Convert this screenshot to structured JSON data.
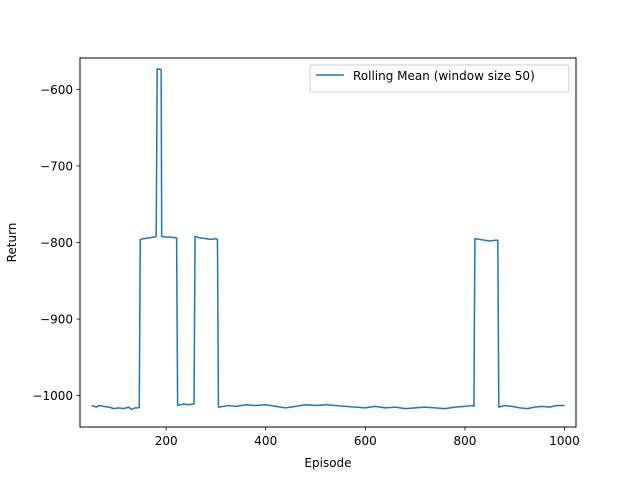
{
  "chart_data": {
    "type": "line",
    "title": "",
    "xlabel": "Episode",
    "ylabel": "Return",
    "xlim": [
      27,
      1023
    ],
    "ylim": [
      -1041,
      -559
    ],
    "xticks": [
      200,
      400,
      600,
      800,
      1000
    ],
    "yticks": [
      -1000,
      -900,
      -800,
      -700,
      -600
    ],
    "xtick_labels": [
      "200",
      "400",
      "600",
      "800",
      "1000"
    ],
    "ytick_labels": [
      "−1000",
      "−900",
      "−800",
      "−700",
      "−600"
    ],
    "legend_position": "top-right",
    "grid": false,
    "series": [
      {
        "name": "Rolling Mean (window size 50)",
        "color": "#1f77b4",
        "points": [
          [
            50,
            -1013
          ],
          [
            55,
            -1014
          ],
          [
            60,
            -1015
          ],
          [
            65,
            -1013
          ],
          [
            75,
            -1014
          ],
          [
            85,
            -1015
          ],
          [
            95,
            -1017
          ],
          [
            105,
            -1016
          ],
          [
            115,
            -1017
          ],
          [
            125,
            -1015
          ],
          [
            130,
            -1018
          ],
          [
            138,
            -1016
          ],
          [
            144,
            -1016
          ],
          [
            146,
            -1015
          ],
          [
            148,
            -796
          ],
          [
            155,
            -795
          ],
          [
            165,
            -794
          ],
          [
            175,
            -793
          ],
          [
            180,
            -792
          ],
          [
            182,
            -573
          ],
          [
            190,
            -574
          ],
          [
            191,
            -792
          ],
          [
            200,
            -793
          ],
          [
            210,
            -793
          ],
          [
            219,
            -794
          ],
          [
            221,
            -794
          ],
          [
            223,
            -1013
          ],
          [
            235,
            -1011
          ],
          [
            245,
            -1012
          ],
          [
            256,
            -1011
          ],
          [
            258,
            -792
          ],
          [
            268,
            -794
          ],
          [
            280,
            -795
          ],
          [
            290,
            -796
          ],
          [
            300,
            -795
          ],
          [
            303,
            -796
          ],
          [
            305,
            -1015
          ],
          [
            315,
            -1014
          ],
          [
            325,
            -1013
          ],
          [
            340,
            -1014
          ],
          [
            360,
            -1012
          ],
          [
            380,
            -1013
          ],
          [
            400,
            -1012
          ],
          [
            420,
            -1014
          ],
          [
            440,
            -1016
          ],
          [
            460,
            -1014
          ],
          [
            480,
            -1012
          ],
          [
            500,
            -1013
          ],
          [
            520,
            -1012
          ],
          [
            540,
            -1013
          ],
          [
            560,
            -1014
          ],
          [
            580,
            -1015
          ],
          [
            600,
            -1016
          ],
          [
            620,
            -1014
          ],
          [
            640,
            -1016
          ],
          [
            660,
            -1015
          ],
          [
            680,
            -1017
          ],
          [
            700,
            -1016
          ],
          [
            720,
            -1015
          ],
          [
            740,
            -1016
          ],
          [
            760,
            -1017
          ],
          [
            780,
            -1015
          ],
          [
            800,
            -1014
          ],
          [
            815,
            -1013
          ],
          [
            818,
            -1014
          ],
          [
            820,
            -795
          ],
          [
            830,
            -796
          ],
          [
            840,
            -797
          ],
          [
            850,
            -798
          ],
          [
            860,
            -797
          ],
          [
            866,
            -797
          ],
          [
            868,
            -1015
          ],
          [
            880,
            -1013
          ],
          [
            895,
            -1014
          ],
          [
            910,
            -1016
          ],
          [
            925,
            -1017
          ],
          [
            940,
            -1015
          ],
          [
            955,
            -1014
          ],
          [
            970,
            -1015
          ],
          [
            985,
            -1013
          ],
          [
            1000,
            -1013
          ]
        ]
      }
    ]
  }
}
